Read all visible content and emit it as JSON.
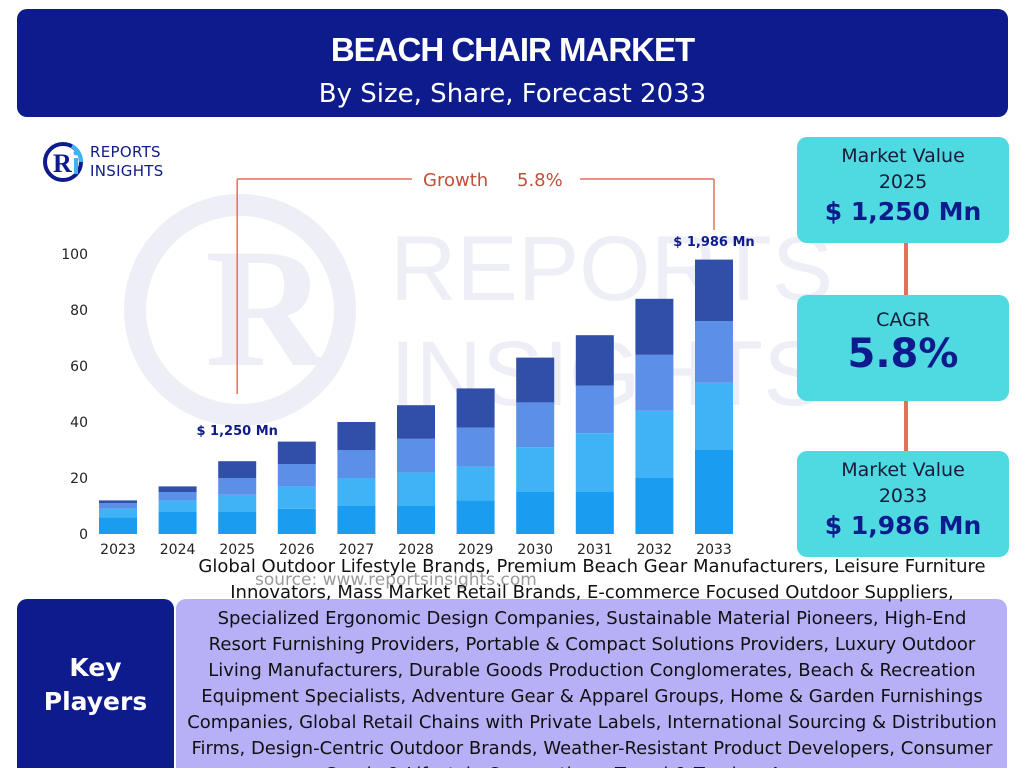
{
  "header": {
    "title": "BEACH CHAIR MARKET",
    "subtitle": "By Size, Share, Forecast 2033"
  },
  "logo": {
    "line1": "REPORTS",
    "line2": "INSIGHTS"
  },
  "cards": {
    "value_2025_label": "Market Value",
    "value_2025_year": "2025",
    "value_2025_amount": "$ 1,250 Mn",
    "cagr_label": "CAGR",
    "cagr_value": "5.8%",
    "value_2033_label": "Market Value",
    "value_2033_year": "2033",
    "value_2033_amount": "$ 1,986 Mn"
  },
  "source": "source: www.reportsinsights.com",
  "key_players": {
    "label_line1": "Key",
    "label_line2": "Players",
    "list": "Global Outdoor Lifestyle Brands, Premium Beach Gear Manufacturers, Leisure Furniture Innovators, Mass Market Retail Brands, E-commerce Focused Outdoor Suppliers, Specialized Ergonomic Design Companies, Sustainable Material Pioneers, High-End Resort Furnishing Providers, Portable & Compact Solutions Providers, Luxury Outdoor Living Manufacturers, Durable Goods Production Conglomerates, Beach & Recreation Equipment Specialists, Adventure Gear & Apparel Groups, Home & Garden Furnishings Companies, Global Retail Chains with Private Labels, International Sourcing & Distribution Firms, Design-Centric Outdoor Brands, Weather-Resistant Product Developers, Consumer Goods & Lifestyle Corporations, Travel & Tourism Accessory"
  },
  "colors": {
    "navy": "#0d1b8c",
    "card": "#4fd9e0",
    "connector": "#e3705a",
    "players_bg": "#b7b0f7",
    "seg1": "#1a9cf0",
    "seg2": "#3fb3f5",
    "seg3": "#5b8fe8",
    "seg4": "#2f4fa8"
  },
  "chart_data": {
    "type": "bar",
    "stacked": true,
    "categories": [
      "2023",
      "2024",
      "2025",
      "2026",
      "2027",
      "2028",
      "2029",
      "2030",
      "2031",
      "2032",
      "2033"
    ],
    "series": [
      {
        "values": [
          6,
          8,
          8,
          9,
          10,
          10,
          12,
          15,
          15,
          20,
          30
        ]
      },
      {
        "values": [
          3,
          4,
          6,
          8,
          10,
          12,
          12,
          16,
          21,
          24,
          24
        ]
      },
      {
        "values": [
          2,
          3,
          6,
          8,
          10,
          12,
          14,
          16,
          17,
          20,
          22
        ]
      },
      {
        "values": [
          1,
          2,
          6,
          8,
          10,
          12,
          14,
          16,
          18,
          20,
          22
        ]
      }
    ],
    "ylim": [
      0,
      100
    ],
    "yticks": [
      0,
      20,
      40,
      60,
      80,
      100
    ],
    "annotations": {
      "start_label": "$ 1,250 Mn",
      "end_label": "$ 1,986 Mn",
      "growth_label": "Growth",
      "growth_value": "5.8%"
    }
  }
}
